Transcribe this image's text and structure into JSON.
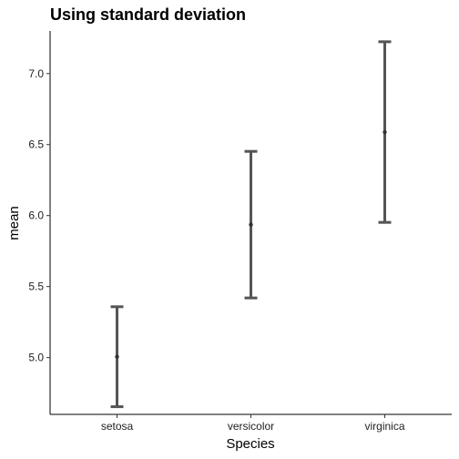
{
  "chart_data": {
    "type": "errorbar",
    "title": "Using standard deviation",
    "xlabel": "Species",
    "ylabel": "mean",
    "categories": [
      "setosa",
      "versicolor",
      "virginica"
    ],
    "series": [
      {
        "values": [
          5.006,
          5.936,
          6.588
        ],
        "lower": [
          4.654,
          5.42,
          5.952
        ],
        "upper": [
          5.358,
          6.452,
          7.224
        ]
      }
    ],
    "ylim": [
      4.6,
      7.3
    ],
    "yticks": [
      5.0,
      5.5,
      6.0,
      6.5,
      7.0
    ],
    "ytick_labels": [
      "5.0",
      "5.5",
      "6.0",
      "6.5",
      "7.0"
    ],
    "grid": false,
    "colors": {
      "bar": "#555555",
      "point": "#333333",
      "axis": "#000000"
    }
  }
}
